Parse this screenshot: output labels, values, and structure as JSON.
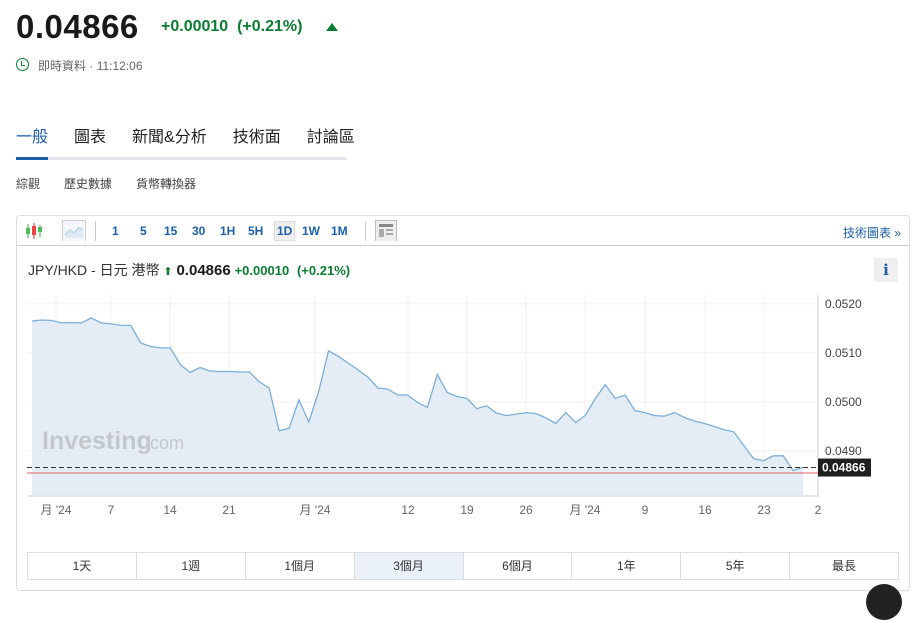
{
  "header": {
    "price": "0.04866",
    "change": "+0.00010",
    "change_pct": "(+0.21%)",
    "direction": "up",
    "status": "即時資料",
    "time": "11:12:06",
    "up_color": "#0a7d32"
  },
  "tabs": [
    {
      "label": "一般",
      "active": true
    },
    {
      "label": "圖表"
    },
    {
      "label": "新聞&分析"
    },
    {
      "label": "技術面"
    },
    {
      "label": "討論區"
    }
  ],
  "subtabs": [
    "綜觀",
    "歷史數據",
    "貨幣轉換器"
  ],
  "toolbar": {
    "intervals": [
      "1",
      "5",
      "15",
      "30",
      "1H",
      "5H",
      "1D",
      "1W",
      "1M"
    ],
    "selected": "1D",
    "tech_chart_link": "技術圖表 »"
  },
  "chart_header": {
    "pair": "JPY/HKD - 日元 港幣",
    "price": "0.04866",
    "change": "+0.00010",
    "change_pct": "(+0.21%)",
    "info": "i"
  },
  "watermark": {
    "brand": "Investing",
    "suffix": ".com"
  },
  "chart_data": {
    "type": "area",
    "line_color": "#7aafd9",
    "fill_color": "#e4edf5",
    "ylim": [
      0.0481,
      0.05218
    ],
    "y_ticks": [
      "0.0520",
      "0.0510",
      "0.0500",
      "0.0490"
    ],
    "x_ticks": [
      "月 '24",
      "7",
      "14",
      "21",
      "月 '24",
      "12",
      "19",
      "26",
      "月 '24",
      "9",
      "16",
      "23",
      "2"
    ],
    "last_label": "0.04866",
    "last_value": 0.04866,
    "reference_value": 0.04855,
    "grid": true,
    "values": [
      0.05165,
      0.05167,
      0.05166,
      0.05161,
      0.05162,
      0.05161,
      0.05171,
      0.05161,
      0.05159,
      0.05156,
      0.05156,
      0.0512,
      0.05113,
      0.0511,
      0.0511,
      0.05076,
      0.0506,
      0.0507,
      0.05063,
      0.05062,
      0.05062,
      0.05061,
      0.05061,
      0.05041,
      0.05028,
      0.04941,
      0.04946,
      0.05004,
      0.04959,
      0.05021,
      0.05104,
      0.05093,
      0.05079,
      0.05065,
      0.0505,
      0.05028,
      0.05026,
      0.05014,
      0.05014,
      0.04999,
      0.04989,
      0.05056,
      0.05019,
      0.05011,
      0.05007,
      0.04986,
      0.04992,
      0.04977,
      0.04972,
      0.04975,
      0.04978,
      0.04976,
      0.04967,
      0.04956,
      0.04978,
      0.04958,
      0.04973,
      0.05007,
      0.05035,
      0.05007,
      0.05014,
      0.04982,
      0.04978,
      0.04972,
      0.04971,
      0.04978,
      0.04968,
      0.04961,
      0.04956,
      0.0495,
      0.04943,
      0.04939,
      0.04911,
      0.04884,
      0.0488,
      0.0489,
      0.0489,
      0.0486,
      0.04866
    ]
  },
  "ranges": [
    {
      "label": "1天"
    },
    {
      "label": "1週"
    },
    {
      "label": "1個月"
    },
    {
      "label": "3個月",
      "selected": true
    },
    {
      "label": "6個月"
    },
    {
      "label": "1年"
    },
    {
      "label": "5年"
    },
    {
      "label": "最長"
    }
  ]
}
